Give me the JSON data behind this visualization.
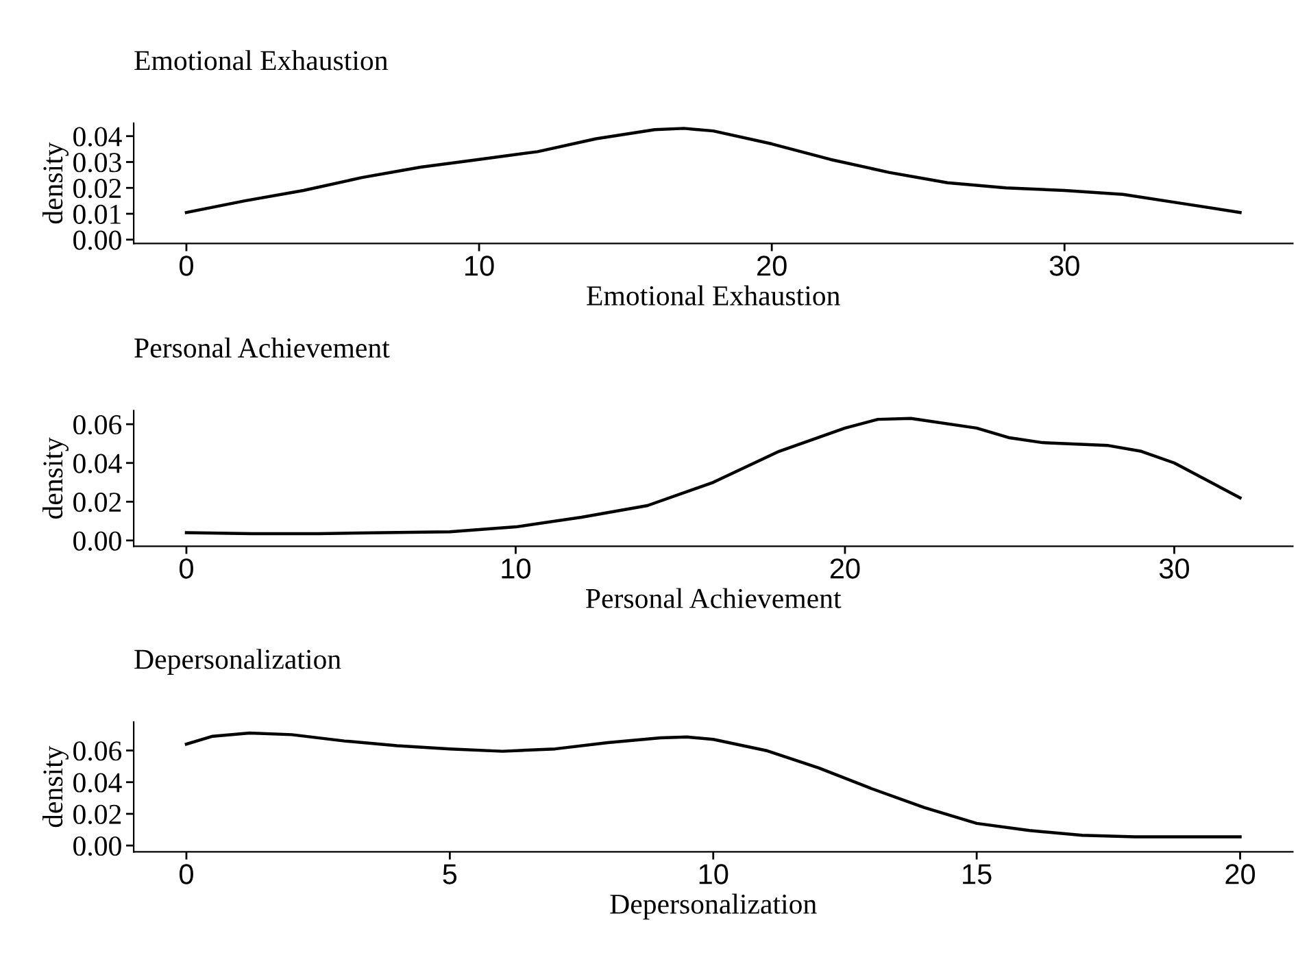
{
  "chart_data": [
    {
      "type": "line",
      "title": "Emotional Exhaustion",
      "xlabel": "Emotional Exhaustion",
      "ylabel": "density",
      "grid": false,
      "legend": false,
      "series": [
        {
          "color": "#000000",
          "x": [
            0,
            2,
            4,
            6,
            8,
            10,
            12,
            14,
            16,
            17,
            18,
            20,
            22,
            24,
            26,
            28,
            30,
            32,
            34,
            36
          ],
          "values": [
            0.0105,
            0.015,
            0.019,
            0.024,
            0.028,
            0.031,
            0.034,
            0.039,
            0.0425,
            0.043,
            0.042,
            0.037,
            0.031,
            0.026,
            0.022,
            0.02,
            0.019,
            0.0175,
            0.014,
            0.0105
          ]
        }
      ],
      "xlim": [
        -1.8,
        37.8
      ],
      "xticks": [
        0,
        10,
        20,
        30
      ],
      "ylim": [
        -0.0015,
        0.045
      ],
      "yticks": [
        {
          "value": 0,
          "label": "0.00"
        },
        {
          "value": 0.01,
          "label": "0.01"
        },
        {
          "value": 0.02,
          "label": "0.02"
        },
        {
          "value": 0.03,
          "label": "0.03"
        },
        {
          "value": 0.04,
          "label": "0.04"
        }
      ]
    },
    {
      "type": "line",
      "title": "Personal Achievement",
      "xlabel": "Personal Achievement",
      "ylabel": "density",
      "grid": false,
      "legend": false,
      "series": [
        {
          "color": "#000000",
          "x": [
            0,
            2,
            4,
            6,
            8,
            10,
            12,
            14,
            16,
            18,
            20,
            21,
            22,
            24,
            25,
            26,
            28,
            29,
            30,
            32
          ],
          "values": [
            0.004,
            0.0035,
            0.0035,
            0.004,
            0.0045,
            0.007,
            0.012,
            0.018,
            0.03,
            0.046,
            0.058,
            0.0625,
            0.063,
            0.058,
            0.053,
            0.0505,
            0.049,
            0.046,
            0.04,
            0.022
          ]
        }
      ],
      "xlim": [
        -1.6,
        33.6
      ],
      "xticks": [
        0,
        10,
        20,
        30
      ],
      "ylim": [
        -0.003,
        0.067
      ],
      "yticks": [
        {
          "value": 0,
          "label": "0.00"
        },
        {
          "value": 0.02,
          "label": "0.02"
        },
        {
          "value": 0.04,
          "label": "0.04"
        },
        {
          "value": 0.06,
          "label": "0.06"
        }
      ]
    },
    {
      "type": "line",
      "title": "Depersonalization",
      "xlabel": "Depersonalization",
      "ylabel": "density",
      "grid": false,
      "legend": false,
      "series": [
        {
          "color": "#000000",
          "x": [
            0,
            0.5,
            1.2,
            2,
            3,
            4,
            5,
            6,
            7,
            8,
            9,
            9.5,
            10,
            11,
            12,
            13,
            14,
            15,
            16,
            17,
            18,
            19,
            20
          ],
          "values": [
            0.064,
            0.069,
            0.071,
            0.07,
            0.066,
            0.063,
            0.061,
            0.0595,
            0.061,
            0.065,
            0.068,
            0.0685,
            0.067,
            0.06,
            0.049,
            0.036,
            0.024,
            0.014,
            0.0095,
            0.0065,
            0.0055,
            0.0055,
            0.0055
          ]
        }
      ],
      "xlim": [
        -1,
        21
      ],
      "xticks": [
        0,
        5,
        10,
        15,
        20
      ],
      "ylim": [
        -0.004,
        0.078
      ],
      "yticks": [
        {
          "value": 0,
          "label": "0.00"
        },
        {
          "value": 0.02,
          "label": "0.02"
        },
        {
          "value": 0.04,
          "label": "0.04"
        },
        {
          "value": 0.06,
          "label": "0.06"
        }
      ]
    }
  ]
}
